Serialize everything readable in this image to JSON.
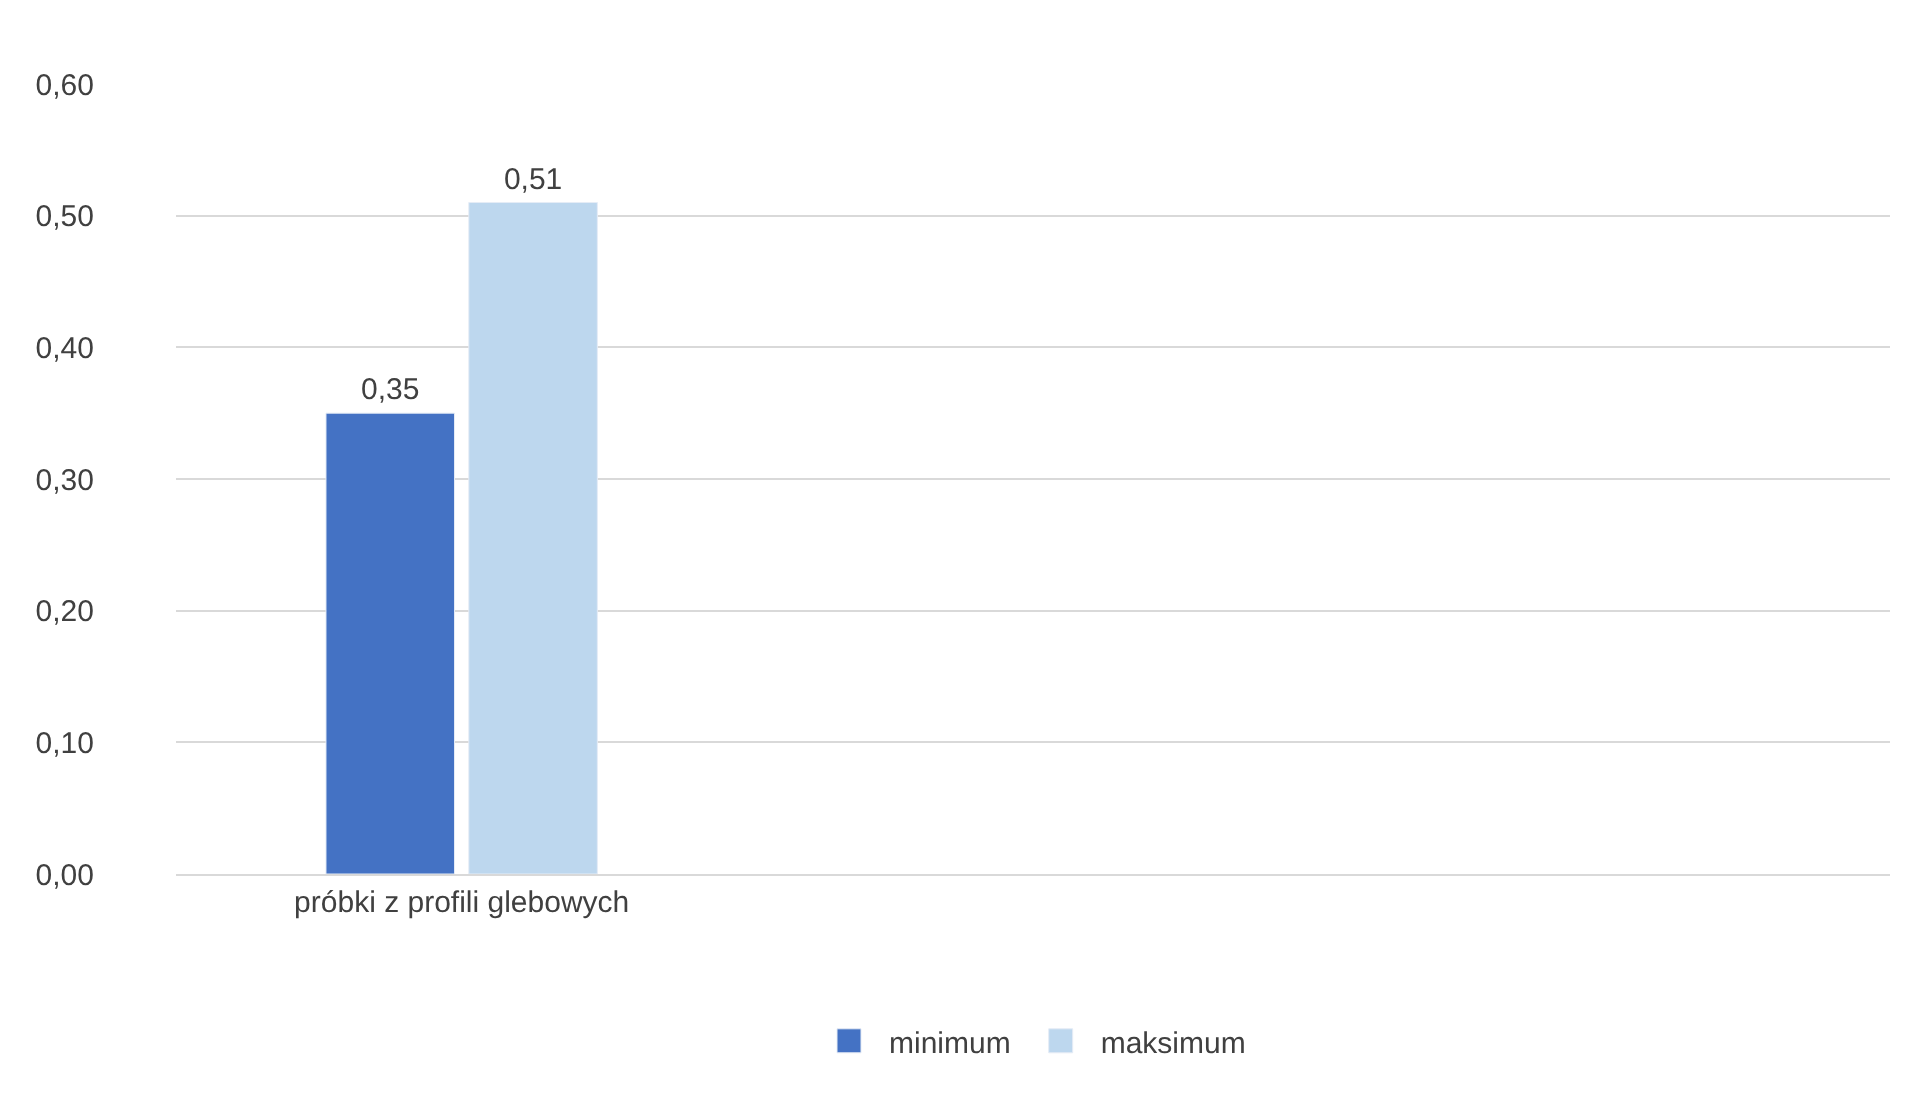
{
  "chart_data": {
    "type": "bar",
    "categories": [
      "próbki z profili glebowych",
      null,
      null
    ],
    "series": [
      {
        "name": "minimum",
        "color": "#4472c4",
        "values": [
          0.35,
          null,
          null
        ],
        "value_labels": [
          "0,35",
          null,
          null
        ]
      },
      {
        "name": "maksimum",
        "color": "#bdd7ee",
        "values": [
          0.51,
          null,
          null
        ],
        "value_labels": [
          "0,51",
          null,
          null
        ]
      }
    ],
    "ylim": [
      0,
      0.6
    ],
    "yticks": [
      {
        "value": 0,
        "label": "0,00"
      },
      {
        "value": 0.1,
        "label": "0,10"
      },
      {
        "value": 0.2,
        "label": "0,20"
      },
      {
        "value": 0.3,
        "label": "0,30"
      },
      {
        "value": 0.4,
        "label": "0,40"
      },
      {
        "value": 0.5,
        "label": "0,50"
      },
      {
        "value": 0.6,
        "label": "0,60"
      }
    ],
    "grid": "y",
    "legend": "bottom"
  }
}
